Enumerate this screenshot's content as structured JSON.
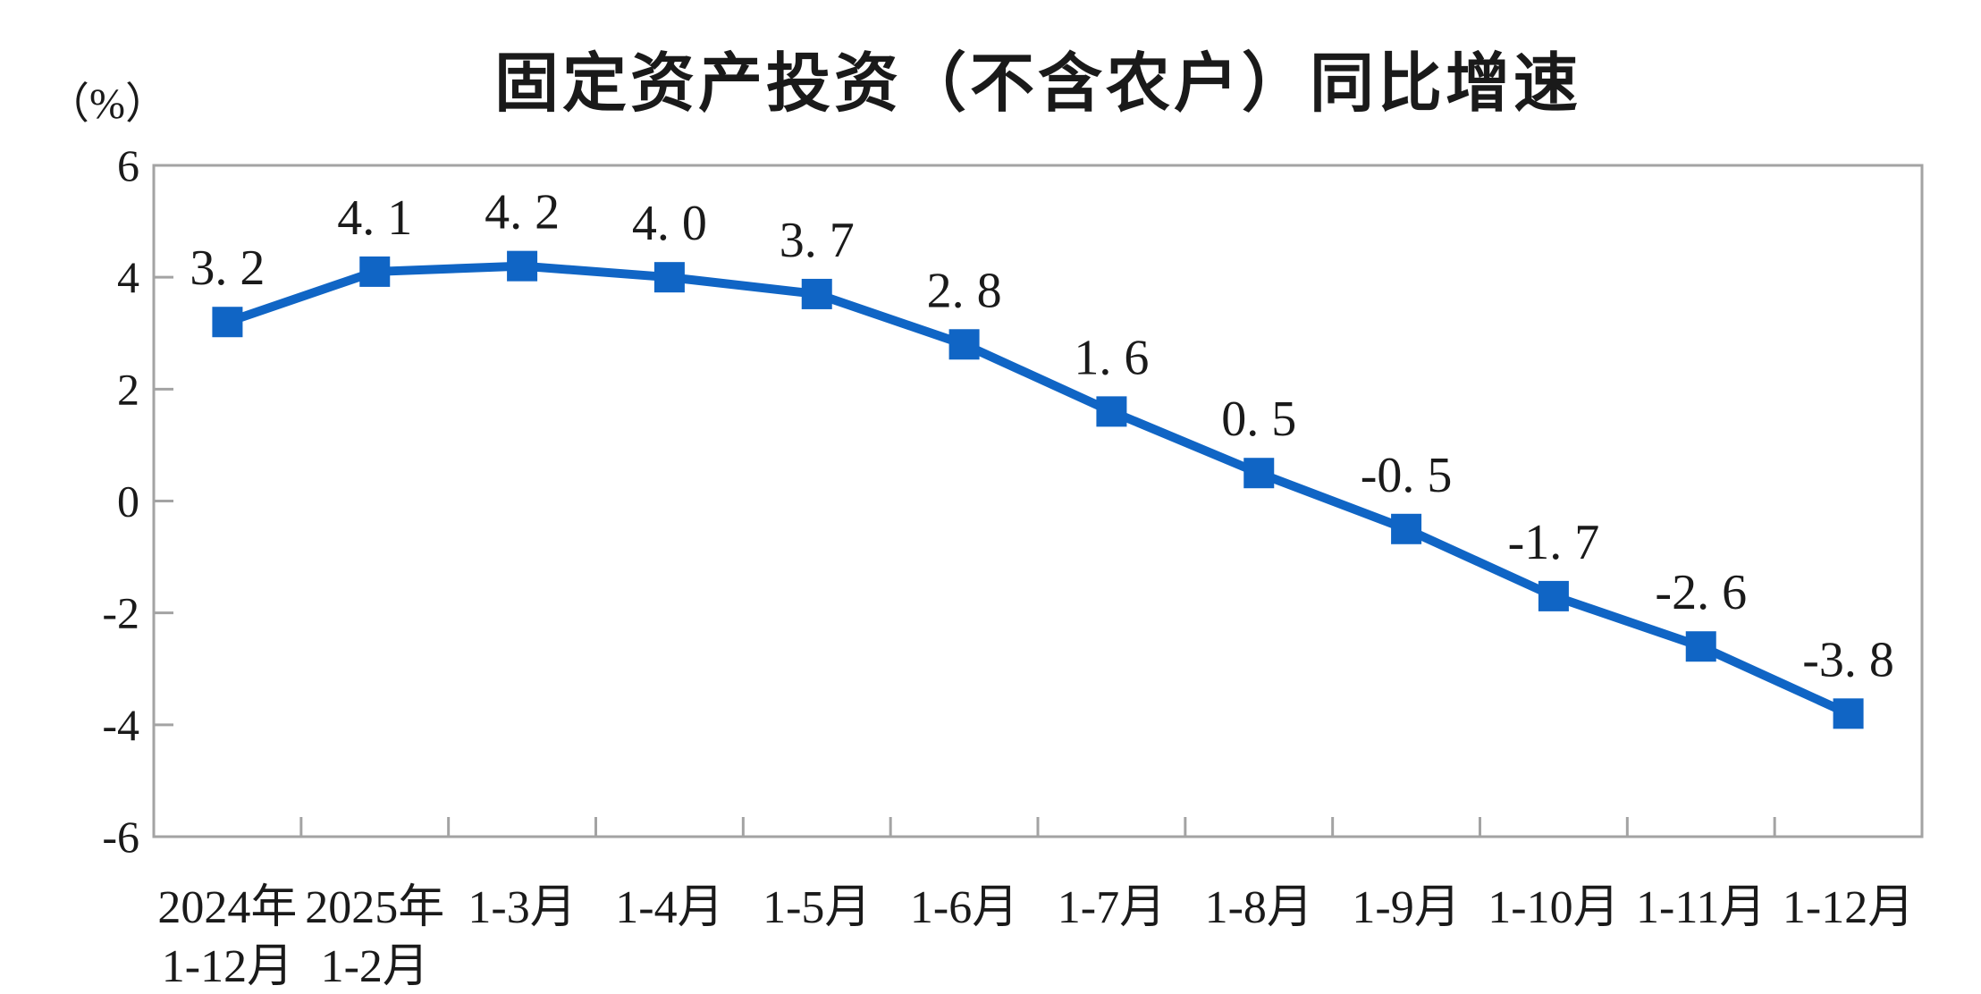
{
  "chart_data": {
    "type": "line",
    "title": "固定资产投资（不含农户）同比增速",
    "ylabel": "（%）",
    "xlabel": "",
    "categories": [
      [
        "2024年",
        "1-12月"
      ],
      [
        "2025年",
        "1-2月"
      ],
      [
        "1-3月"
      ],
      [
        "1-4月"
      ],
      [
        "1-5月"
      ],
      [
        "1-6月"
      ],
      [
        "1-7月"
      ],
      [
        "1-8月"
      ],
      [
        "1-9月"
      ],
      [
        "1-10月"
      ],
      [
        "1-11月"
      ],
      [
        "1-12月"
      ]
    ],
    "series": [
      {
        "name": "固定资产投资（不含农户）同比增速",
        "values": [
          3.2,
          4.1,
          4.2,
          4.0,
          3.7,
          2.8,
          1.6,
          0.5,
          -0.5,
          -1.7,
          -2.6,
          -3.8
        ],
        "point_labels": [
          "3. 2",
          "4. 1",
          "4. 2",
          "4. 0",
          "3. 7",
          "2. 8",
          "1. 6",
          "0. 5",
          "-0. 5",
          "-1. 7",
          "-2. 6",
          "-3. 8"
        ]
      }
    ],
    "ylim": [
      -6,
      6
    ],
    "yticks": [
      6,
      4,
      2,
      0,
      -2,
      -4,
      -6
    ],
    "ytick_labels": [
      "6",
      "4",
      "2",
      "0",
      "-2",
      "-4",
      "-6"
    ],
    "grid": false,
    "legend_position": "none",
    "marker": "square",
    "colors": {
      "line": "#1065C5",
      "marker": "#1065C5",
      "axis": "#A3A3A3",
      "text": "#1a1a1a",
      "title": "#1a1a1a",
      "background": "#ffffff"
    }
  }
}
